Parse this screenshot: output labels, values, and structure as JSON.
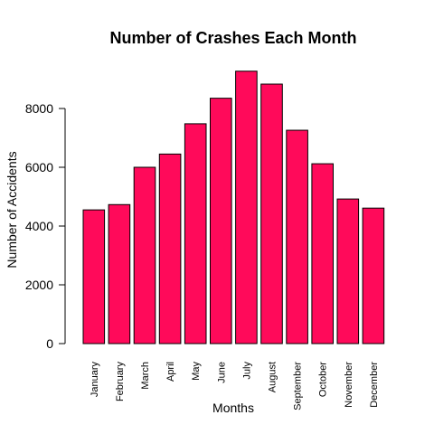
{
  "chart_data": {
    "type": "bar",
    "title": "Number of Crashes Each Month",
    "xlabel": "Months",
    "ylabel": "Number of Accidents",
    "categories": [
      "January",
      "February",
      "March",
      "April",
      "May",
      "June",
      "July",
      "August",
      "September",
      "October",
      "November",
      "December"
    ],
    "values": [
      4550,
      4730,
      6000,
      6450,
      7480,
      8350,
      9270,
      8830,
      7260,
      6120,
      4920,
      4610
    ],
    "ylim": [
      0,
      9500
    ],
    "yticks": [
      0,
      2000,
      4000,
      6000,
      8000
    ],
    "grid": false,
    "bar_color": "#ff0a5a",
    "bar_border": "#000000"
  }
}
